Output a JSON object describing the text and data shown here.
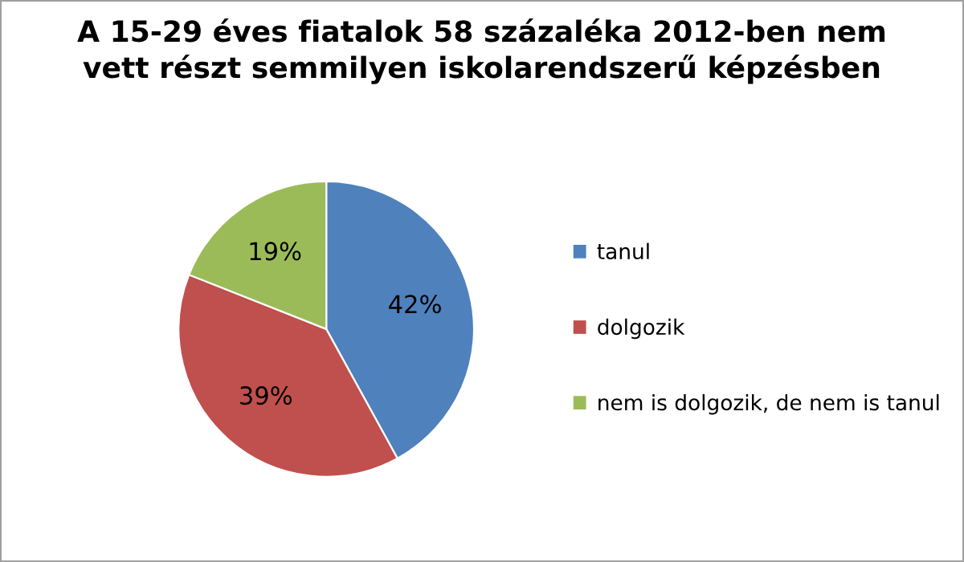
{
  "chart_data": {
    "type": "pie",
    "title": "A 15-29 éves fiatalok 58 százaléka 2012-ben nem\nvett részt semmilyen iskolarendszerű képzésben",
    "categories": [
      "tanul",
      "dolgozik",
      "nem is dolgozik, de nem is tanul"
    ],
    "values": [
      42,
      39,
      19
    ],
    "colors": [
      "#4f81bd",
      "#c0504d",
      "#9bbb59"
    ],
    "value_labels": [
      "42%",
      "39%",
      "19%"
    ],
    "legend": "right"
  }
}
